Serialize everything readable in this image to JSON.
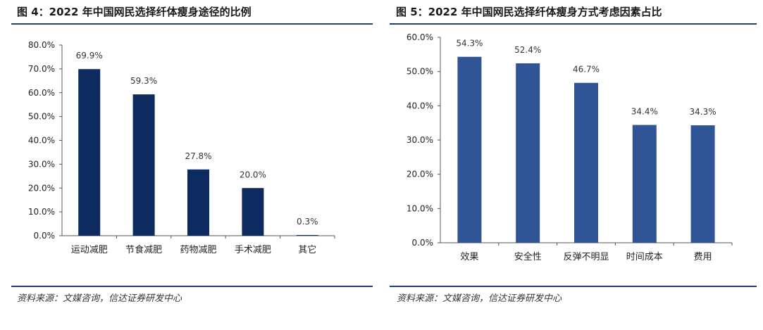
{
  "figures": [
    {
      "title": "图 4：2022 年中国网民选择纤体瘦身途径的比例",
      "source": "资料来源：文媒咨询，信达证券研发中心"
    },
    {
      "title": "图 5：2022 年中国网民选择纤体瘦身方式考虑因素占比",
      "source": "资料来源：文媒咨询，信达证券研发中心"
    }
  ],
  "chart_data": [
    {
      "type": "bar",
      "title": "",
      "xlabel": "",
      "ylabel": "",
      "categories": [
        "运动减肥",
        "节食减肥",
        "药物减肥",
        "手术减肥",
        "其它"
      ],
      "values": [
        69.9,
        59.3,
        27.8,
        20.0,
        0.3
      ],
      "value_labels": [
        "69.9%",
        "59.3%",
        "27.8%",
        "20.0%",
        "0.3%"
      ],
      "ylim": [
        0,
        80
      ],
      "yticks": [
        0,
        10,
        20,
        30,
        40,
        50,
        60,
        70,
        80
      ],
      "ytick_labels": [
        "0.0%",
        "10.0%",
        "20.0%",
        "30.0%",
        "40.0%",
        "50.0%",
        "60.0%",
        "70.0%",
        "80.0%"
      ],
      "bar_color": "#0d2b5e",
      "grid": false,
      "legend": "none"
    },
    {
      "type": "bar",
      "title": "",
      "xlabel": "",
      "ylabel": "",
      "categories": [
        "效果",
        "安全性",
        "反弹不明显",
        "时间成本",
        "费用"
      ],
      "values": [
        54.3,
        52.4,
        46.7,
        34.4,
        34.3
      ],
      "value_labels": [
        "54.3%",
        "52.4%",
        "46.7%",
        "34.4%",
        "34.3%"
      ],
      "ylim": [
        0,
        60
      ],
      "yticks": [
        0,
        10,
        20,
        30,
        40,
        50,
        60
      ],
      "ytick_labels": [
        "0.0%",
        "10.0%",
        "20.0%",
        "30.0%",
        "40.0%",
        "50.0%",
        "60.0%"
      ],
      "bar_color": "#2f5597",
      "grid": false,
      "legend": "none"
    }
  ]
}
